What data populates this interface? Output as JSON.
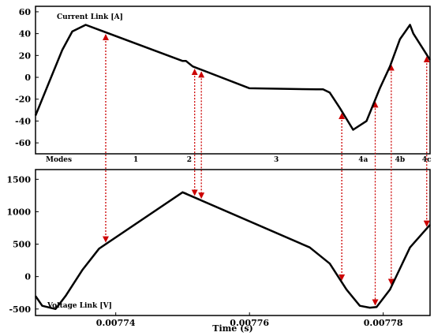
{
  "chart_data": [
    {
      "type": "line",
      "title": "Current Link [A]",
      "ylim": [
        -70,
        65
      ],
      "yticks": [
        60,
        40,
        20,
        0,
        -20,
        -40,
        -60
      ],
      "grid": false,
      "series": [
        {
          "color": "#000000",
          "x": [
            0.007728,
            0.00773,
            0.007732,
            0.0077335,
            0.0077355,
            0.00775,
            0.0077505,
            0.0077515,
            0.00776,
            0.00777,
            0.007771,
            0.007772,
            0.0077735,
            0.0077755,
            0.0077775,
            0.0077795,
            0.007781,
            0.0077825,
            0.007784,
            0.0077845,
            0.007787
          ],
          "y": [
            -35,
            -5,
            25,
            42,
            48,
            15,
            15,
            10,
            -10,
            -11,
            -11,
            -14,
            -28,
            -48,
            -40,
            -10,
            10,
            35,
            48,
            40,
            16
          ]
        }
      ],
      "modes": {
        "label": "Modes",
        "regions": [
          "1",
          "2",
          "3",
          "4a",
          "4b",
          "4c"
        ],
        "region_x": [
          0.007743,
          0.007751,
          0.007764,
          0.007777,
          0.0077825,
          0.0077865
        ]
      }
    },
    {
      "type": "line",
      "title": "Voltage Link [V]",
      "xlabel": "Time (s)",
      "xlim": [
        0.007728,
        0.007787
      ],
      "xticks": [
        0.00774,
        0.00776,
        0.00778
      ],
      "ylim": [
        -600,
        1650
      ],
      "yticks": [
        1500,
        1000,
        500,
        0,
        -500
      ],
      "grid": false,
      "series": [
        {
          "color": "#000000",
          "x": [
            0.007728,
            0.007729,
            0.007731,
            0.0077325,
            0.007735,
            0.0077375,
            0.00775,
            0.0077505,
            0.00775,
            0.007769,
            0.007772,
            0.0077745,
            0.0077765,
            0.007778,
            0.007779,
            0.007781,
            0.007784,
            0.007787
          ],
          "y": [
            -300,
            -450,
            -500,
            -300,
            100,
            430,
            1300,
            1280,
            1300,
            450,
            200,
            -200,
            -450,
            -480,
            -470,
            -200,
            450,
            800
          ]
        }
      ]
    }
  ],
  "markers": {
    "color": "#cc0000",
    "current_times": [
      0.0077385,
      0.0077518,
      0.0077528,
      0.0077738,
      0.0077788,
      0.0077812,
      0.0077865
    ],
    "voltage_times": [
      0.0077385,
      0.0077518,
      0.0077528,
      0.0077738,
      0.0077788,
      0.0077812,
      0.0077865
    ]
  }
}
